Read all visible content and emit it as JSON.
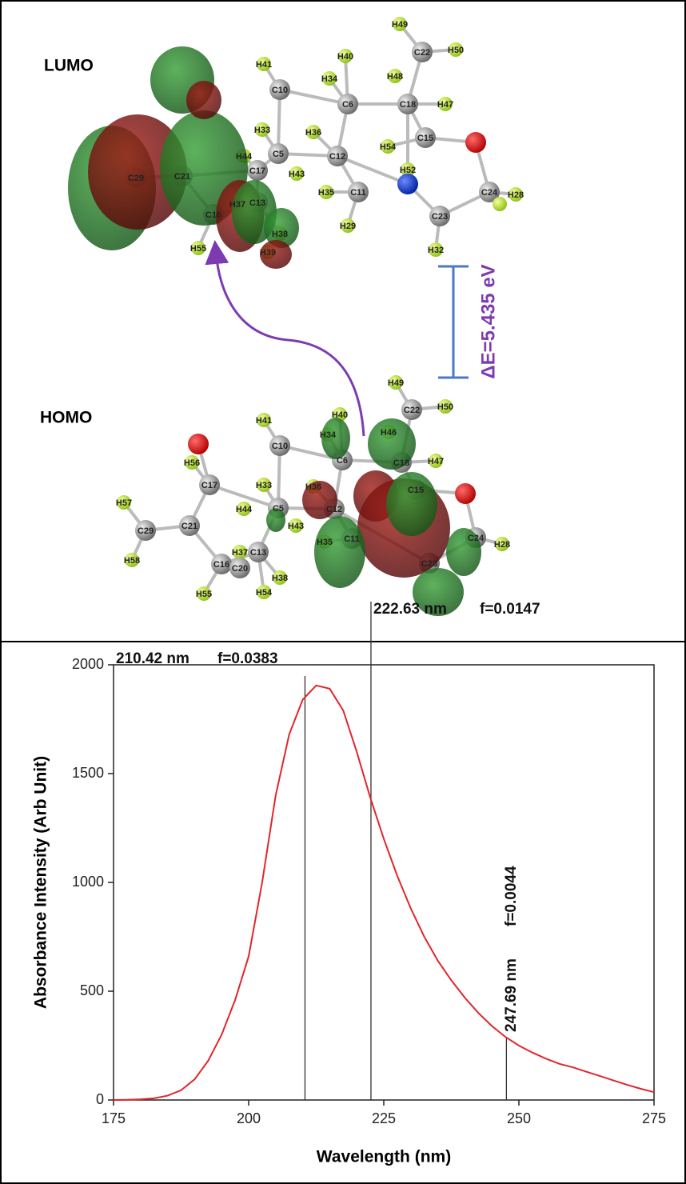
{
  "figure": {
    "lumo": {
      "title": "LUMO",
      "atoms": [
        "H49",
        "C22",
        "H50",
        "H41",
        "H40",
        "C10",
        "H34",
        "C6",
        "H48",
        "C18",
        "H47",
        "H33",
        "H36",
        "C12",
        "H54",
        "C15",
        "C5",
        "H44",
        "C17",
        "H43",
        "H52",
        "C11",
        "H35",
        "C24",
        "H28",
        "H29",
        "C23",
        "H32",
        "C13",
        "H37",
        "C16",
        "H38",
        "H39",
        "H55",
        "C21",
        "C29"
      ]
    },
    "homo": {
      "title": "HOMO",
      "atoms": [
        "H49",
        "C22",
        "H50",
        "H41",
        "H40",
        "C10",
        "H34",
        "C6",
        "H46",
        "C18",
        "H47",
        "H33",
        "H36",
        "C12",
        "C15",
        "C5",
        "H44",
        "C17",
        "H43",
        "C11",
        "H35",
        "C24",
        "H28",
        "C23",
        "C13",
        "H37",
        "C16",
        "C20",
        "H38",
        "H54",
        "H55",
        "C21",
        "C29",
        "H57",
        "H58",
        "H56"
      ]
    },
    "gap_label": "ΔE=5.435 eV"
  },
  "chart_data": {
    "type": "line",
    "xlabel": "Wavelength (nm)",
    "ylabel": "Absorbance Intensity (Arb Unit)",
    "x": [
      175,
      177.5,
      180,
      182.5,
      185,
      187.5,
      190,
      192.5,
      195,
      197.5,
      200,
      202.5,
      205,
      207.5,
      210,
      212.5,
      215,
      217.5,
      220,
      222.5,
      225,
      227.5,
      230,
      232.5,
      235,
      237.5,
      240,
      242.5,
      245,
      247.5,
      250,
      252.5,
      255,
      257.5,
      260,
      262.5,
      265,
      267.5,
      270,
      272.5,
      275
    ],
    "series": [
      {
        "color": "#e0262b",
        "values": [
          0,
          1,
          3,
          8,
          20,
          45,
          95,
          180,
          300,
          460,
          660,
          1000,
          1400,
          1680,
          1840,
          1905,
          1890,
          1790,
          1600,
          1390,
          1200,
          1030,
          880,
          750,
          640,
          550,
          470,
          400,
          340,
          290,
          250,
          218,
          190,
          166,
          150,
          130,
          110,
          90,
          70,
          52,
          36
        ]
      }
    ],
    "transitions": [
      {
        "wavelength": {
          "value": 210.42,
          "label": "210.42 nm"
        },
        "f": {
          "value": 0.0383,
          "label": "f=0.0383"
        }
      },
      {
        "wavelength": {
          "value": 222.63,
          "label": "222.63 nm"
        },
        "f": {
          "value": 0.0147,
          "label": "f=0.0147"
        }
      },
      {
        "wavelength": {
          "value": 247.69,
          "label": "247.69 nm"
        },
        "f": {
          "value": 0.0044,
          "label": "f=0.0044"
        }
      }
    ],
    "xlim": [
      175,
      275
    ],
    "xticks": [
      175,
      200,
      225,
      250,
      275
    ],
    "ylim": [
      0,
      2000
    ],
    "yticks": [
      0,
      500,
      1000,
      1500,
      2000
    ]
  }
}
